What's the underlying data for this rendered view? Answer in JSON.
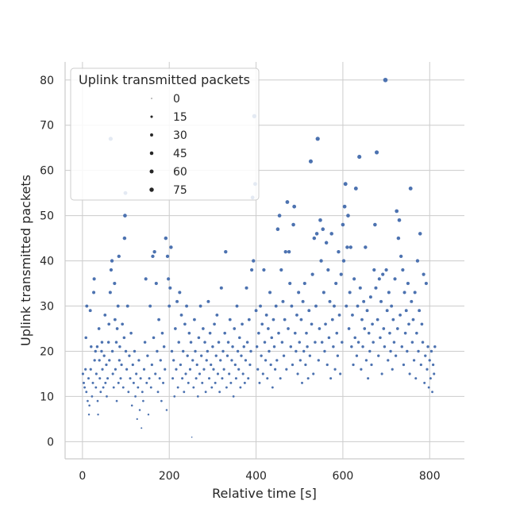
{
  "chart_data": {
    "type": "scatter",
    "title": "",
    "xlabel": "Relative time [s]",
    "ylabel": "Uplink transmitted packets",
    "xlim": [
      -40,
      880
    ],
    "ylim": [
      -3.8,
      84
    ],
    "xticks": [
      0,
      200,
      400,
      600,
      800
    ],
    "yticks": [
      0,
      10,
      20,
      30,
      40,
      50,
      60,
      70,
      80
    ],
    "xtick_labels": [
      "0",
      "200",
      "400",
      "600",
      "800"
    ],
    "ytick_labels": [
      "0",
      "10",
      "20",
      "30",
      "40",
      "50",
      "60",
      "70",
      "80"
    ],
    "grid": true,
    "legend": {
      "title": "Uplink transmitted packets",
      "placement": "upper-left",
      "sizes": [
        0,
        15,
        30,
        45,
        60,
        75
      ],
      "labels": [
        "0",
        "15",
        "30",
        "45",
        "60",
        "75"
      ]
    },
    "point_color": "#4c72b0",
    "points": [
      [
        1,
        15
      ],
      [
        3,
        13
      ],
      [
        5,
        12
      ],
      [
        7,
        16
      ],
      [
        8,
        23
      ],
      [
        9,
        11
      ],
      [
        10,
        30
      ],
      [
        12,
        9
      ],
      [
        14,
        14
      ],
      [
        15,
        6
      ],
      [
        16,
        8
      ],
      [
        18,
        29
      ],
      [
        19,
        16
      ],
      [
        20,
        21
      ],
      [
        22,
        10
      ],
      [
        24,
        13
      ],
      [
        26,
        33
      ],
      [
        27,
        36
      ],
      [
        28,
        18
      ],
      [
        30,
        20
      ],
      [
        31,
        12
      ],
      [
        32,
        15
      ],
      [
        34,
        21
      ],
      [
        35,
        9
      ],
      [
        36,
        6
      ],
      [
        38,
        25
      ],
      [
        39,
        18
      ],
      [
        40,
        14
      ],
      [
        42,
        11
      ],
      [
        44,
        20
      ],
      [
        45,
        22
      ],
      [
        46,
        16
      ],
      [
        48,
        12
      ],
      [
        50,
        19
      ],
      [
        52,
        28
      ],
      [
        53,
        13
      ],
      [
        55,
        17
      ],
      [
        56,
        10
      ],
      [
        58,
        14
      ],
      [
        60,
        22
      ],
      [
        61,
        26
      ],
      [
        62,
        18
      ],
      [
        64,
        33
      ],
      [
        65,
        67
      ],
      [
        66,
        38
      ],
      [
        68,
        40
      ],
      [
        69,
        20
      ],
      [
        70,
        15
      ],
      [
        72,
        12
      ],
      [
        74,
        35
      ],
      [
        75,
        27
      ],
      [
        76,
        16
      ],
      [
        78,
        22
      ],
      [
        79,
        9
      ],
      [
        80,
        25
      ],
      [
        82,
        30
      ],
      [
        83,
        13
      ],
      [
        84,
        41
      ],
      [
        85,
        18
      ],
      [
        86,
        21
      ],
      [
        88,
        14
      ],
      [
        90,
        17
      ],
      [
        92,
        26
      ],
      [
        94,
        12
      ],
      [
        96,
        23
      ],
      [
        97,
        45
      ],
      [
        98,
        50
      ],
      [
        99,
        55
      ],
      [
        100,
        20
      ],
      [
        102,
        16
      ],
      [
        104,
        30
      ],
      [
        106,
        11
      ],
      [
        108,
        19
      ],
      [
        110,
        14
      ],
      [
        112,
        24
      ],
      [
        114,
        8
      ],
      [
        116,
        17
      ],
      [
        118,
        13
      ],
      [
        120,
        20
      ],
      [
        122,
        10
      ],
      [
        124,
        15
      ],
      [
        126,
        5
      ],
      [
        128,
        12
      ],
      [
        130,
        18
      ],
      [
        132,
        7
      ],
      [
        134,
        14
      ],
      [
        136,
        3
      ],
      [
        138,
        11
      ],
      [
        140,
        9
      ],
      [
        142,
        16
      ],
      [
        144,
        22
      ],
      [
        146,
        36
      ],
      [
        148,
        13
      ],
      [
        150,
        19
      ],
      [
        152,
        6
      ],
      [
        154,
        14
      ],
      [
        156,
        30
      ],
      [
        158,
        12
      ],
      [
        160,
        17
      ],
      [
        162,
        41
      ],
      [
        164,
        23
      ],
      [
        166,
        42
      ],
      [
        168,
        15
      ],
      [
        170,
        35
      ],
      [
        172,
        20
      ],
      [
        174,
        11
      ],
      [
        176,
        27
      ],
      [
        178,
        14
      ],
      [
        180,
        18
      ],
      [
        182,
        9
      ],
      [
        184,
        24
      ],
      [
        186,
        13
      ],
      [
        188,
        21
      ],
      [
        190,
        16
      ],
      [
        192,
        45
      ],
      [
        194,
        7
      ],
      [
        196,
        41
      ],
      [
        198,
        36
      ],
      [
        200,
        30
      ],
      [
        202,
        34
      ],
      [
        204,
        43
      ],
      [
        206,
        20
      ],
      [
        208,
        14
      ],
      [
        210,
        18
      ],
      [
        212,
        10
      ],
      [
        214,
        25
      ],
      [
        216,
        16
      ],
      [
        218,
        31
      ],
      [
        220,
        12
      ],
      [
        222,
        22
      ],
      [
        224,
        33
      ],
      [
        226,
        17
      ],
      [
        228,
        28
      ],
      [
        230,
        14
      ],
      [
        232,
        20
      ],
      [
        234,
        11
      ],
      [
        236,
        26
      ],
      [
        238,
        15
      ],
      [
        240,
        30
      ],
      [
        242,
        19
      ],
      [
        244,
        13
      ],
      [
        246,
        24
      ],
      [
        248,
        16
      ],
      [
        250,
        22
      ],
      [
        252,
        1
      ],
      [
        254,
        18
      ],
      [
        256,
        12
      ],
      [
        258,
        27
      ],
      [
        260,
        20
      ],
      [
        262,
        14
      ],
      [
        264,
        17
      ],
      [
        266,
        10
      ],
      [
        268,
        23
      ],
      [
        270,
        15
      ],
      [
        272,
        30
      ],
      [
        274,
        19
      ],
      [
        276,
        13
      ],
      [
        278,
        25
      ],
      [
        280,
        16
      ],
      [
        282,
        22
      ],
      [
        284,
        11
      ],
      [
        286,
        18
      ],
      [
        288,
        20
      ],
      [
        290,
        31
      ],
      [
        292,
        14
      ],
      [
        294,
        24
      ],
      [
        296,
        17
      ],
      [
        298,
        12
      ],
      [
        300,
        21
      ],
      [
        302,
        16
      ],
      [
        304,
        26
      ],
      [
        306,
        13
      ],
      [
        308,
        19
      ],
      [
        310,
        28
      ],
      [
        312,
        15
      ],
      [
        314,
        22
      ],
      [
        316,
        11
      ],
      [
        318,
        18
      ],
      [
        320,
        34
      ],
      [
        322,
        14
      ],
      [
        324,
        20
      ],
      [
        326,
        16
      ],
      [
        328,
        24
      ],
      [
        330,
        42
      ],
      [
        332,
        12
      ],
      [
        334,
        19
      ],
      [
        336,
        22
      ],
      [
        338,
        15
      ],
      [
        340,
        27
      ],
      [
        342,
        13
      ],
      [
        344,
        18
      ],
      [
        346,
        21
      ],
      [
        348,
        10
      ],
      [
        350,
        25
      ],
      [
        352,
        17
      ],
      [
        354,
        14
      ],
      [
        356,
        30
      ],
      [
        358,
        20
      ],
      [
        360,
        16
      ],
      [
        362,
        23
      ],
      [
        364,
        12
      ],
      [
        366,
        19
      ],
      [
        368,
        26
      ],
      [
        370,
        15
      ],
      [
        372,
        21
      ],
      [
        374,
        13
      ],
      [
        376,
        18
      ],
      [
        378,
        34
      ],
      [
        380,
        22
      ],
      [
        382,
        14
      ],
      [
        384,
        27
      ],
      [
        386,
        17
      ],
      [
        388,
        20
      ],
      [
        390,
        38
      ],
      [
        392,
        54
      ],
      [
        394,
        40
      ],
      [
        396,
        72
      ],
      [
        398,
        57
      ],
      [
        400,
        29
      ],
      [
        402,
        21
      ],
      [
        404,
        16
      ],
      [
        406,
        24
      ],
      [
        408,
        13
      ],
      [
        410,
        30
      ],
      [
        412,
        19
      ],
      [
        414,
        26
      ],
      [
        416,
        15
      ],
      [
        418,
        38
      ],
      [
        420,
        22
      ],
      [
        422,
        18
      ],
      [
        424,
        28
      ],
      [
        426,
        14
      ],
      [
        428,
        25
      ],
      [
        430,
        20
      ],
      [
        432,
        33
      ],
      [
        434,
        17
      ],
      [
        436,
        23
      ],
      [
        438,
        12
      ],
      [
        440,
        27
      ],
      [
        442,
        21
      ],
      [
        444,
        16
      ],
      [
        446,
        30
      ],
      [
        448,
        18
      ],
      [
        450,
        47
      ],
      [
        452,
        24
      ],
      [
        454,
        50
      ],
      [
        456,
        14
      ],
      [
        458,
        38
      ],
      [
        460,
        22
      ],
      [
        462,
        31
      ],
      [
        464,
        19
      ],
      [
        466,
        27
      ],
      [
        468,
        42
      ],
      [
        470,
        16
      ],
      [
        472,
        53
      ],
      [
        474,
        25
      ],
      [
        476,
        42
      ],
      [
        478,
        35
      ],
      [
        480,
        21
      ],
      [
        482,
        30
      ],
      [
        484,
        17
      ],
      [
        486,
        48
      ],
      [
        488,
        52
      ],
      [
        490,
        24
      ],
      [
        492,
        20
      ],
      [
        494,
        28
      ],
      [
        496,
        15
      ],
      [
        498,
        33
      ],
      [
        500,
        22
      ],
      [
        502,
        18
      ],
      [
        504,
        27
      ],
      [
        506,
        13
      ],
      [
        508,
        31
      ],
      [
        510,
        20
      ],
      [
        512,
        35
      ],
      [
        514,
        17
      ],
      [
        516,
        24
      ],
      [
        518,
        21
      ],
      [
        520,
        14
      ],
      [
        522,
        29
      ],
      [
        524,
        19
      ],
      [
        526,
        62
      ],
      [
        528,
        26
      ],
      [
        530,
        37
      ],
      [
        532,
        15
      ],
      [
        534,
        45
      ],
      [
        536,
        22
      ],
      [
        538,
        30
      ],
      [
        540,
        46
      ],
      [
        542,
        67
      ],
      [
        544,
        18
      ],
      [
        546,
        25
      ],
      [
        548,
        49
      ],
      [
        550,
        40
      ],
      [
        552,
        22
      ],
      [
        554,
        47
      ],
      [
        556,
        33
      ],
      [
        558,
        20
      ],
      [
        560,
        26
      ],
      [
        562,
        44
      ],
      [
        564,
        17
      ],
      [
        566,
        38
      ],
      [
        568,
        23
      ],
      [
        570,
        31
      ],
      [
        572,
        14
      ],
      [
        574,
        46
      ],
      [
        576,
        27
      ],
      [
        578,
        21
      ],
      [
        580,
        30
      ],
      [
        582,
        16
      ],
      [
        584,
        35
      ],
      [
        586,
        24
      ],
      [
        588,
        19
      ],
      [
        590,
        42
      ],
      [
        592,
        28
      ],
      [
        594,
        15
      ],
      [
        596,
        37
      ],
      [
        598,
        22
      ],
      [
        600,
        48
      ],
      [
        602,
        40
      ],
      [
        604,
        52
      ],
      [
        606,
        57
      ],
      [
        608,
        30
      ],
      [
        610,
        43
      ],
      [
        612,
        50
      ],
      [
        614,
        25
      ],
      [
        616,
        33
      ],
      [
        618,
        43
      ],
      [
        620,
        21
      ],
      [
        622,
        28
      ],
      [
        624,
        17
      ],
      [
        626,
        36
      ],
      [
        628,
        23
      ],
      [
        630,
        56
      ],
      [
        632,
        19
      ],
      [
        634,
        30
      ],
      [
        636,
        22
      ],
      [
        638,
        63
      ],
      [
        640,
        34
      ],
      [
        642,
        16
      ],
      [
        644,
        27
      ],
      [
        646,
        21
      ],
      [
        648,
        31
      ],
      [
        650,
        25
      ],
      [
        652,
        43
      ],
      [
        654,
        18
      ],
      [
        656,
        29
      ],
      [
        658,
        14
      ],
      [
        660,
        24
      ],
      [
        662,
        20
      ],
      [
        664,
        32
      ],
      [
        666,
        17
      ],
      [
        668,
        26
      ],
      [
        670,
        22
      ],
      [
        672,
        38
      ],
      [
        674,
        48
      ],
      [
        676,
        34
      ],
      [
        678,
        64
      ],
      [
        680,
        27
      ],
      [
        682,
        19
      ],
      [
        684,
        36
      ],
      [
        686,
        23
      ],
      [
        688,
        31
      ],
      [
        690,
        15
      ],
      [
        692,
        37
      ],
      [
        694,
        25
      ],
      [
        696,
        21
      ],
      [
        698,
        80
      ],
      [
        700,
        38
      ],
      [
        702,
        29
      ],
      [
        704,
        18
      ],
      [
        706,
        33
      ],
      [
        708,
        24
      ],
      [
        710,
        20
      ],
      [
        712,
        30
      ],
      [
        714,
        16
      ],
      [
        716,
        27
      ],
      [
        718,
        22
      ],
      [
        720,
        36
      ],
      [
        722,
        19
      ],
      [
        724,
        51
      ],
      [
        726,
        25
      ],
      [
        728,
        45
      ],
      [
        730,
        49
      ],
      [
        732,
        28
      ],
      [
        734,
        41
      ],
      [
        736,
        21
      ],
      [
        738,
        38
      ],
      [
        740,
        17
      ],
      [
        742,
        33
      ],
      [
        744,
        24
      ],
      [
        746,
        29
      ],
      [
        748,
        20
      ],
      [
        750,
        35
      ],
      [
        752,
        26
      ],
      [
        754,
        15
      ],
      [
        756,
        56
      ],
      [
        758,
        31
      ],
      [
        760,
        22
      ],
      [
        762,
        27
      ],
      [
        764,
        18
      ],
      [
        766,
        33
      ],
      [
        768,
        14
      ],
      [
        770,
        24
      ],
      [
        772,
        40
      ],
      [
        774,
        20
      ],
      [
        776,
        29
      ],
      [
        778,
        46
      ],
      [
        780,
        17
      ],
      [
        782,
        26
      ],
      [
        784,
        22
      ],
      [
        786,
        37
      ],
      [
        788,
        13
      ],
      [
        790,
        19
      ],
      [
        792,
        35
      ],
      [
        794,
        16
      ],
      [
        796,
        21
      ],
      [
        798,
        12
      ],
      [
        800,
        18
      ],
      [
        802,
        14
      ],
      [
        804,
        20
      ],
      [
        806,
        11
      ],
      [
        808,
        17
      ],
      [
        810,
        15
      ],
      [
        812,
        21
      ]
    ]
  }
}
